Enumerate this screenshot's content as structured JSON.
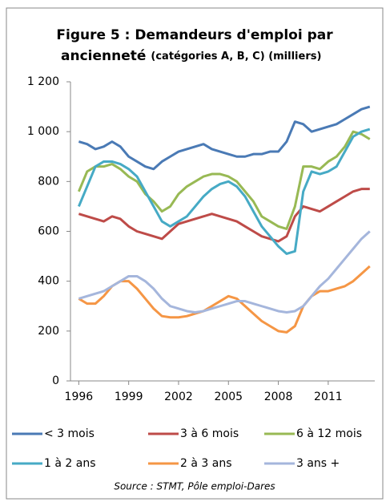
{
  "chart_data": {
    "type": "line",
    "title": [
      "Figure 5 : Demandeurs d'emploi par",
      "ancienneté"
    ],
    "subtitle": "(catégories A, B, C) (milliers)",
    "source": "Source : STMT, Pôle emploi-Dares",
    "x": [
      1996,
      1996.5,
      1997,
      1997.5,
      1998,
      1998.5,
      1999,
      1999.5,
      2000,
      2000.5,
      2001,
      2001.5,
      2002,
      2002.5,
      2003,
      2003.5,
      2004,
      2004.5,
      2005,
      2005.5,
      2006,
      2006.5,
      2007,
      2007.5,
      2008,
      2008.5,
      2009,
      2009.5,
      2010,
      2010.5,
      2011,
      2011.5,
      2012,
      2012.5,
      2013,
      2013.5
    ],
    "xlim": [
      1995.5,
      2013.8
    ],
    "xticks": [
      1996,
      1999,
      2002,
      2005,
      2008,
      2011
    ],
    "ylim": [
      0,
      1200
    ],
    "yticks": [
      0,
      200,
      400,
      600,
      800,
      {
        "value": 1000,
        "label": "1 000"
      },
      {
        "value": 1200,
        "label": "1 200"
      }
    ],
    "series": [
      {
        "name": "< 3 mois",
        "color": "#4a7ab5",
        "values": [
          960,
          950,
          930,
          940,
          960,
          940,
          900,
          880,
          860,
          850,
          880,
          900,
          920,
          930,
          940,
          950,
          930,
          920,
          910,
          900,
          900,
          910,
          910,
          920,
          920,
          960,
          1040,
          1030,
          1000,
          1010,
          1020,
          1030,
          1050,
          1070,
          1090,
          1100
        ]
      },
      {
        "name": "3 à 6 mois",
        "color": "#be4b48",
        "values": [
          670,
          660,
          650,
          640,
          660,
          650,
          620,
          600,
          590,
          580,
          570,
          600,
          630,
          640,
          650,
          660,
          670,
          660,
          650,
          640,
          620,
          600,
          580,
          570,
          560,
          580,
          660,
          700,
          690,
          680,
          700,
          720,
          740,
          760,
          770,
          770
        ]
      },
      {
        "name": "6 à 12 mois",
        "color": "#98b954",
        "values": [
          760,
          840,
          860,
          860,
          870,
          850,
          820,
          800,
          750,
          720,
          680,
          700,
          750,
          780,
          800,
          820,
          830,
          830,
          820,
          800,
          760,
          720,
          660,
          640,
          620,
          610,
          700,
          860,
          860,
          850,
          880,
          900,
          940,
          1000,
          990,
          970
        ]
      },
      {
        "name": "1 à 2 ans",
        "color": "#46aac5",
        "values": [
          700,
          780,
          860,
          880,
          880,
          870,
          850,
          820,
          760,
          700,
          640,
          620,
          640,
          660,
          700,
          740,
          770,
          790,
          800,
          780,
          740,
          680,
          620,
          580,
          540,
          510,
          520,
          760,
          840,
          830,
          840,
          860,
          920,
          980,
          1000,
          1010
        ]
      },
      {
        "name": "2 à 3 ans",
        "color": "#f59645",
        "values": [
          330,
          310,
          310,
          340,
          380,
          400,
          400,
          370,
          330,
          290,
          260,
          255,
          255,
          260,
          270,
          280,
          300,
          320,
          340,
          330,
          300,
          270,
          240,
          220,
          200,
          195,
          220,
          300,
          340,
          360,
          360,
          370,
          380,
          400,
          430,
          460
        ]
      },
      {
        "name": "3 ans +",
        "color": "#a5b6dc",
        "values": [
          330,
          340,
          350,
          360,
          380,
          400,
          420,
          420,
          400,
          370,
          330,
          300,
          290,
          280,
          275,
          280,
          290,
          300,
          310,
          320,
          320,
          310,
          300,
          290,
          280,
          275,
          280,
          300,
          340,
          380,
          410,
          450,
          490,
          530,
          570,
          600
        ]
      }
    ]
  }
}
